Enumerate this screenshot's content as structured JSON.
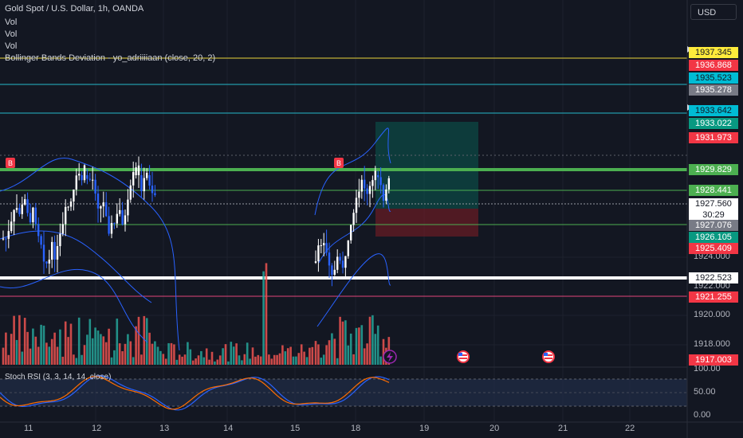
{
  "header": {
    "symbol": "Gold Spot / U.S. Dollar, 1h, OANDA",
    "vol_1": "Vol",
    "vol_2": "Vol",
    "vol_3": "Vol",
    "bb_indicator": "Bollinger Bands Deviation - yo_adriiiiaan (close, 20, 2)"
  },
  "currency_button": "USD",
  "price_labels": [
    {
      "id": "p1937345",
      "text": "1937.345",
      "bg": "#ffeb3b",
      "fg": "#131722"
    },
    {
      "id": "p1936868",
      "text": "1936.868",
      "bg": "#f23645",
      "fg": "#ffffff"
    },
    {
      "id": "p1935523",
      "text": "1935.523",
      "bg": "#00bcd4",
      "fg": "#131722"
    },
    {
      "id": "p1935278",
      "text": "1935.278",
      "bg": "#787b86",
      "fg": "#ffffff"
    },
    {
      "id": "p1933642",
      "text": "1933.642",
      "bg": "#00bcd4",
      "fg": "#131722"
    },
    {
      "id": "p1933022",
      "text": "1933.022",
      "bg": "#089981",
      "fg": "#ffffff"
    },
    {
      "id": "p1931973",
      "text": "1931.973",
      "bg": "#f23645",
      "fg": "#ffffff"
    },
    {
      "id": "p1929829",
      "text": "1929.829",
      "bg": "#4caf50",
      "fg": "#ffffff"
    },
    {
      "id": "p1928441",
      "text": "1928.441",
      "bg": "#4caf50",
      "fg": "#ffffff"
    },
    {
      "id": "p1927560",
      "text": "1927.560",
      "bg": "#ffffff",
      "fg": "#131722"
    },
    {
      "id": "p3029",
      "text": "30:29",
      "bg": "#ffffff",
      "fg": "#131722"
    },
    {
      "id": "p1927076",
      "text": "1927.076",
      "bg": "#787b86",
      "fg": "#ffffff"
    },
    {
      "id": "p1926105",
      "text": "1926.105",
      "bg": "#089981",
      "fg": "#ffffff"
    },
    {
      "id": "p1925409",
      "text": "1925.409",
      "bg": "#f23645",
      "fg": "#ffffff"
    },
    {
      "id": "p1922523",
      "text": "1922.523",
      "bg": "#ffffff",
      "fg": "#131722"
    },
    {
      "id": "p1921255",
      "text": "1921.255",
      "bg": "#f23645",
      "fg": "#ffffff"
    },
    {
      "id": "p1917003",
      "text": "1917.003",
      "bg": "#f23645",
      "fg": "#ffffff"
    }
  ],
  "price_axis_ticks": [
    "1924.000",
    "1922.000",
    "1920.000",
    "1918.000"
  ],
  "rsi": {
    "label": "Stoch RSI (3, 3, 14, 14, close)",
    "ticks": [
      "100.00",
      "50.00",
      "0.00"
    ]
  },
  "date_labels": [
    "11",
    "12",
    "13",
    "14",
    "15",
    "18",
    "19",
    "20",
    "21",
    "22"
  ],
  "markers": {
    "buy_1": "B",
    "buy_2": "B"
  },
  "colors": {
    "background": "#131722",
    "bull": "#ffffff",
    "bear": "#2962ff",
    "vol_up": "#26a69a",
    "vol_down": "#ef5350",
    "bb_line": "#2962ff",
    "stoch_k": "#2962ff",
    "stoch_d": "#ff6d00"
  },
  "icons": {
    "flash": "lightning-icon",
    "event_1": "us-flag-icon",
    "event_2": "us-flag-icon"
  }
}
